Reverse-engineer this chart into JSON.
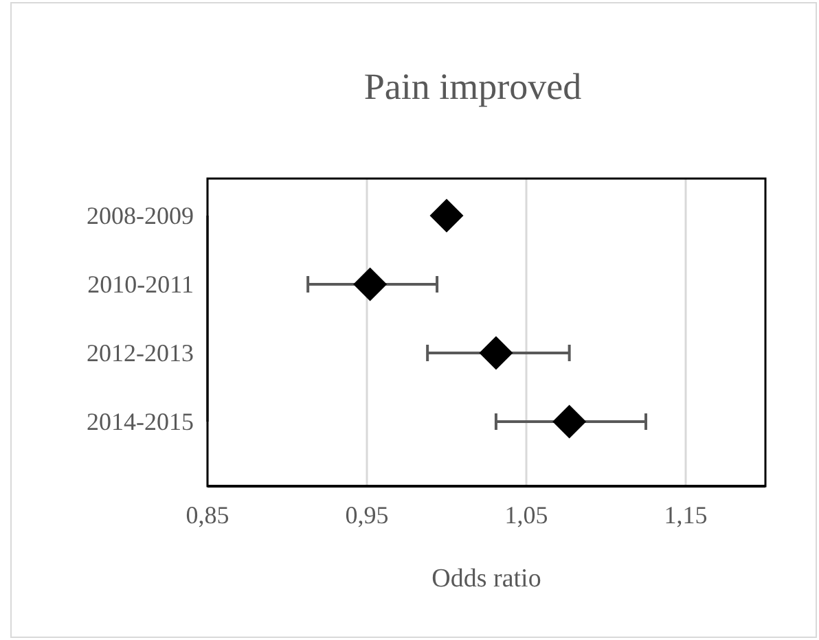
{
  "chart_data": {
    "type": "scatter",
    "title": "Pain improved",
    "xlabel": "Odds ratio",
    "orientation": "horizontal",
    "marker": "diamond",
    "grid": "x",
    "categories": [
      "2008-2009",
      "2010-2011",
      "2012-2013",
      "2014-2015"
    ],
    "series": [
      {
        "color": "#000000",
        "values": [
          1.0,
          0.952,
          1.031,
          1.077
        ],
        "errors": [
          null,
          [
            0.913,
            0.994
          ],
          [
            0.988,
            1.077
          ],
          [
            1.031,
            1.125
          ]
        ]
      }
    ],
    "xlim": [
      0.85,
      1.2
    ],
    "xticks": [
      {
        "value": 0.85,
        "label": "0,85"
      },
      {
        "value": 0.95,
        "label": "0,95"
      },
      {
        "value": 1.05,
        "label": "1,05"
      },
      {
        "value": 1.15,
        "label": "1,15"
      }
    ]
  }
}
